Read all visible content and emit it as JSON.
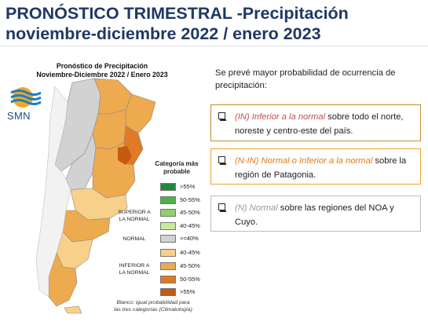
{
  "slide": {
    "title_line1": "PRONÓSTICO TRIMESTRAL -Precipitación",
    "title_line2": "noviembre-diciembre 2022 / enero 2023"
  },
  "map": {
    "title_line1": "Pronóstico de Precipitación",
    "title_line2": "Noviembre-Diciembre 2022 / Enero 2023",
    "logo_text": "SMN",
    "logo_icon": "smn-sun-waves-icon"
  },
  "legend": {
    "title_line1": "Categoría más",
    "title_line2": "probable",
    "group_above_line1": "SUPERIOR A",
    "group_above_line2": "LA NORMAL",
    "group_normal": "NORMAL",
    "group_below_line1": "INFERIOR A",
    "group_below_line2": "LA NORMAL",
    "items": [
      {
        "label": ">55%",
        "color": "#1e8a3a"
      },
      {
        "label": "50-55%",
        "color": "#4fb24a"
      },
      {
        "label": "45-50%",
        "color": "#8fd06a"
      },
      {
        "label": "40-45%",
        "color": "#c6ec9c"
      },
      {
        "label": ">=40%",
        "color": "#d2d2d2"
      },
      {
        "label": "40-45%",
        "color": "#f7d08a"
      },
      {
        "label": "45-50%",
        "color": "#eeaa4e"
      },
      {
        "label": "50-55%",
        "color": "#e07a24"
      },
      {
        "label": ">55%",
        "color": "#c45a12"
      }
    ],
    "footnote_line1": "Blanco: igual probabilidad para",
    "footnote_line2": "las tres categorías (Climatología)"
  },
  "forecast": {
    "intro": "Se prevé mayor probabilidad de ocurrencia de precipitación:",
    "items": [
      {
        "lead": "(IN) Inferior a la normal",
        "text": " sobre todo el norte, noreste y centro-este del país."
      },
      {
        "lead": "(N-IN) Normal o Inferior a la normal",
        "text": " sobre la región de Patagonia."
      },
      {
        "lead": "(N) Normal",
        "text": "  sobre las regiones del NOA y Cuyo."
      }
    ]
  },
  "colors": {
    "title": "#1f3864",
    "box_in_border": "#c98a2a",
    "box_nin_border": "#f0a22e",
    "box_n_border": "#bdbdbd"
  }
}
